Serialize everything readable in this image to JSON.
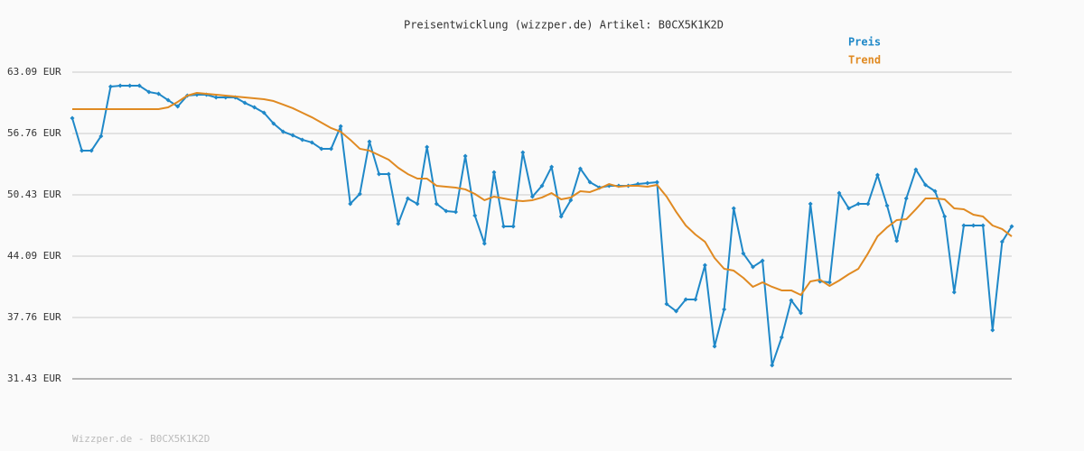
{
  "chart_data": {
    "type": "line",
    "title": "Preisentwicklung (wizzper.de) Artikel: B0CX5K1K2D",
    "footer": "Wizzper.de - B0CX5K1K2D",
    "legend": "top-right",
    "grid": true,
    "ylim": [
      31.43,
      63.09
    ],
    "yticks": [
      {
        "value": 31.43,
        "label": "31.43 EUR"
      },
      {
        "value": 37.76,
        "label": "37.76 EUR"
      },
      {
        "value": 44.09,
        "label": "44.09 EUR"
      },
      {
        "value": 50.43,
        "label": "50.43 EUR"
      },
      {
        "value": 56.76,
        "label": "56.76 EUR"
      },
      {
        "value": 63.09,
        "label": "63.09 EUR"
      }
    ],
    "series": [
      {
        "name": "Preis",
        "color": "#1f88c8",
        "markers": true,
        "values": [
          58.34,
          54.99,
          54.99,
          56.48,
          61.6,
          61.69,
          61.69,
          61.69,
          61.04,
          60.86,
          60.2,
          59.55,
          60.67,
          60.76,
          60.76,
          60.48,
          60.48,
          60.48,
          59.92,
          59.46,
          58.9,
          57.78,
          56.95,
          56.57,
          56.11,
          55.83,
          55.17,
          55.17,
          57.5,
          49.5,
          50.52,
          55.92,
          52.57,
          52.57,
          47.45,
          50.05,
          49.5,
          55.36,
          49.5,
          48.75,
          48.66,
          54.43,
          48.28,
          45.4,
          52.75,
          47.17,
          47.17,
          54.8,
          50.24,
          51.36,
          53.31,
          48.19,
          49.87,
          53.13,
          51.73,
          51.17,
          51.36,
          51.36,
          51.36,
          51.54,
          51.64,
          51.73,
          39.16,
          38.41,
          39.62,
          39.62,
          43.16,
          34.78,
          38.6,
          49.03,
          44.37,
          42.98,
          43.63,
          32.83,
          35.71,
          39.53,
          38.23,
          49.5,
          41.49,
          41.39,
          50.61,
          49.03,
          49.5,
          49.5,
          52.47,
          49.31,
          45.68,
          50.05,
          53.03,
          51.45,
          50.8,
          48.19,
          40.37,
          47.26,
          47.26,
          47.26,
          36.46,
          45.58,
          47.17
        ]
      },
      {
        "name": "Trend",
        "color": "#e08a22",
        "markers": false,
        "values": [
          59.27,
          59.27,
          59.27,
          59.27,
          59.27,
          59.27,
          59.27,
          59.27,
          59.27,
          59.27,
          59.46,
          60.02,
          60.67,
          60.95,
          60.86,
          60.76,
          60.67,
          60.58,
          60.48,
          60.39,
          60.3,
          60.11,
          59.74,
          59.37,
          58.9,
          58.43,
          57.88,
          57.32,
          56.94,
          56.11,
          55.18,
          54.99,
          54.52,
          54.06,
          53.22,
          52.57,
          52.1,
          52.1,
          51.36,
          51.26,
          51.17,
          50.99,
          50.52,
          49.87,
          50.24,
          50.05,
          49.87,
          49.77,
          49.87,
          50.15,
          50.61,
          49.96,
          50.15,
          50.8,
          50.71,
          51.08,
          51.54,
          51.26,
          51.36,
          51.36,
          51.26,
          51.45,
          50.24,
          48.66,
          47.26,
          46.33,
          45.58,
          43.91,
          42.79,
          42.6,
          41.86,
          40.93,
          41.39,
          40.93,
          40.56,
          40.56,
          40.09,
          41.49,
          41.67,
          41.02,
          41.58,
          42.23,
          42.79,
          44.37,
          46.14,
          47.07,
          47.82,
          47.91,
          48.94,
          50.05,
          50.05,
          49.96,
          49.03,
          48.94,
          48.38,
          48.19,
          47.26,
          46.89,
          46.14
        ]
      }
    ]
  }
}
